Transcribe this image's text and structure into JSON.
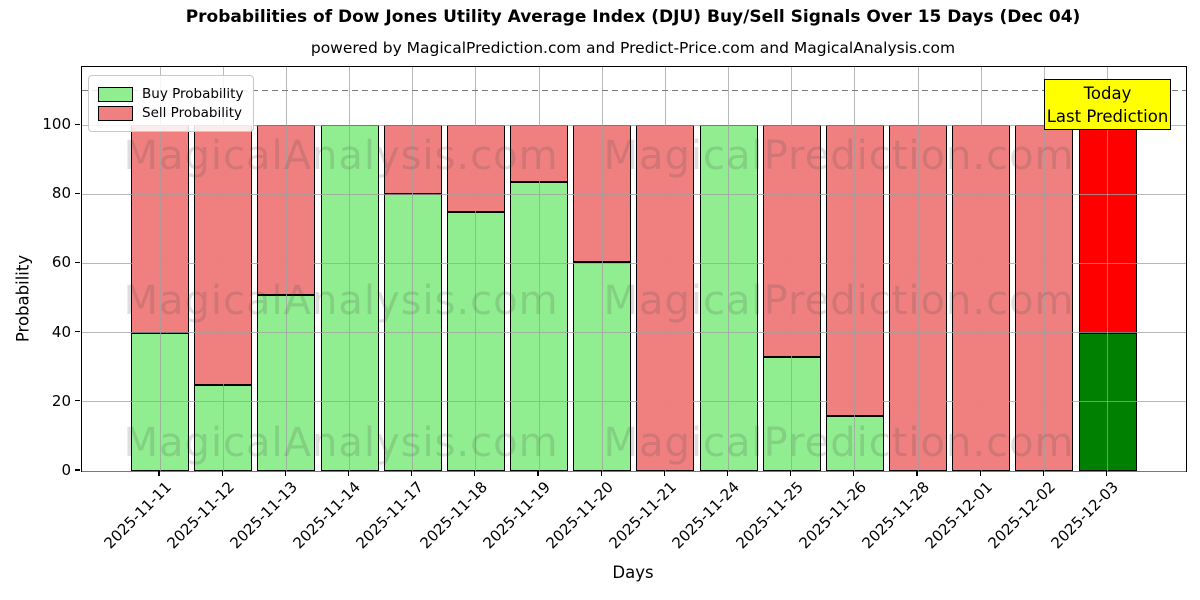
{
  "header": {
    "title": "Probabilities of Dow Jones Utility Average Index (DJU) Buy/Sell Signals Over 15 Days (Dec 04)",
    "subtitle": "powered by MagicalPrediction.com and Predict-Price.com and MagicalAnalysis.com"
  },
  "chart_data": {
    "type": "bar",
    "stacked": true,
    "title": "Probabilities of Dow Jones Utility Average Index (DJU) Buy/Sell Signals Over 15 Days (Dec 04)",
    "xlabel": "Days",
    "ylabel": "Probability",
    "ylim": [
      0,
      116.8
    ],
    "yticks": [
      0,
      20,
      40,
      60,
      80,
      100
    ],
    "reference_line_y": 110,
    "grid": true,
    "legend_position": "upper left",
    "categories": [
      "2025-11-11",
      "2025-11-12",
      "2025-11-13",
      "2025-11-14",
      "2025-11-17",
      "2025-11-18",
      "2025-11-19",
      "2025-11-20",
      "2025-11-21",
      "2025-11-24",
      "2025-11-25",
      "2025-11-26",
      "2025-11-28",
      "2025-12-01",
      "2025-12-02",
      "2025-12-03"
    ],
    "series": [
      {
        "name": "Buy Probability",
        "color": "#90ee90",
        "values": [
          40,
          25,
          51,
          100,
          80,
          75,
          83.5,
          60.5,
          0,
          100,
          33,
          16,
          0,
          0,
          0,
          40
        ]
      },
      {
        "name": "Sell Probability",
        "color": "#f08080",
        "values": [
          60,
          75,
          49,
          0,
          20,
          25,
          16.5,
          39.5,
          100,
          0,
          67,
          84,
          100,
          100,
          100,
          60
        ]
      }
    ],
    "today_index": 15,
    "today_colors": {
      "buy": "#008000",
      "sell": "#ff0000"
    }
  },
  "annotation": {
    "line1": "Today",
    "line2": "Last Prediction",
    "bg_color": "#ffff00"
  },
  "watermarks": {
    "left": "MagicalAnalysis.com",
    "right": "MagicalPrediction.com"
  }
}
